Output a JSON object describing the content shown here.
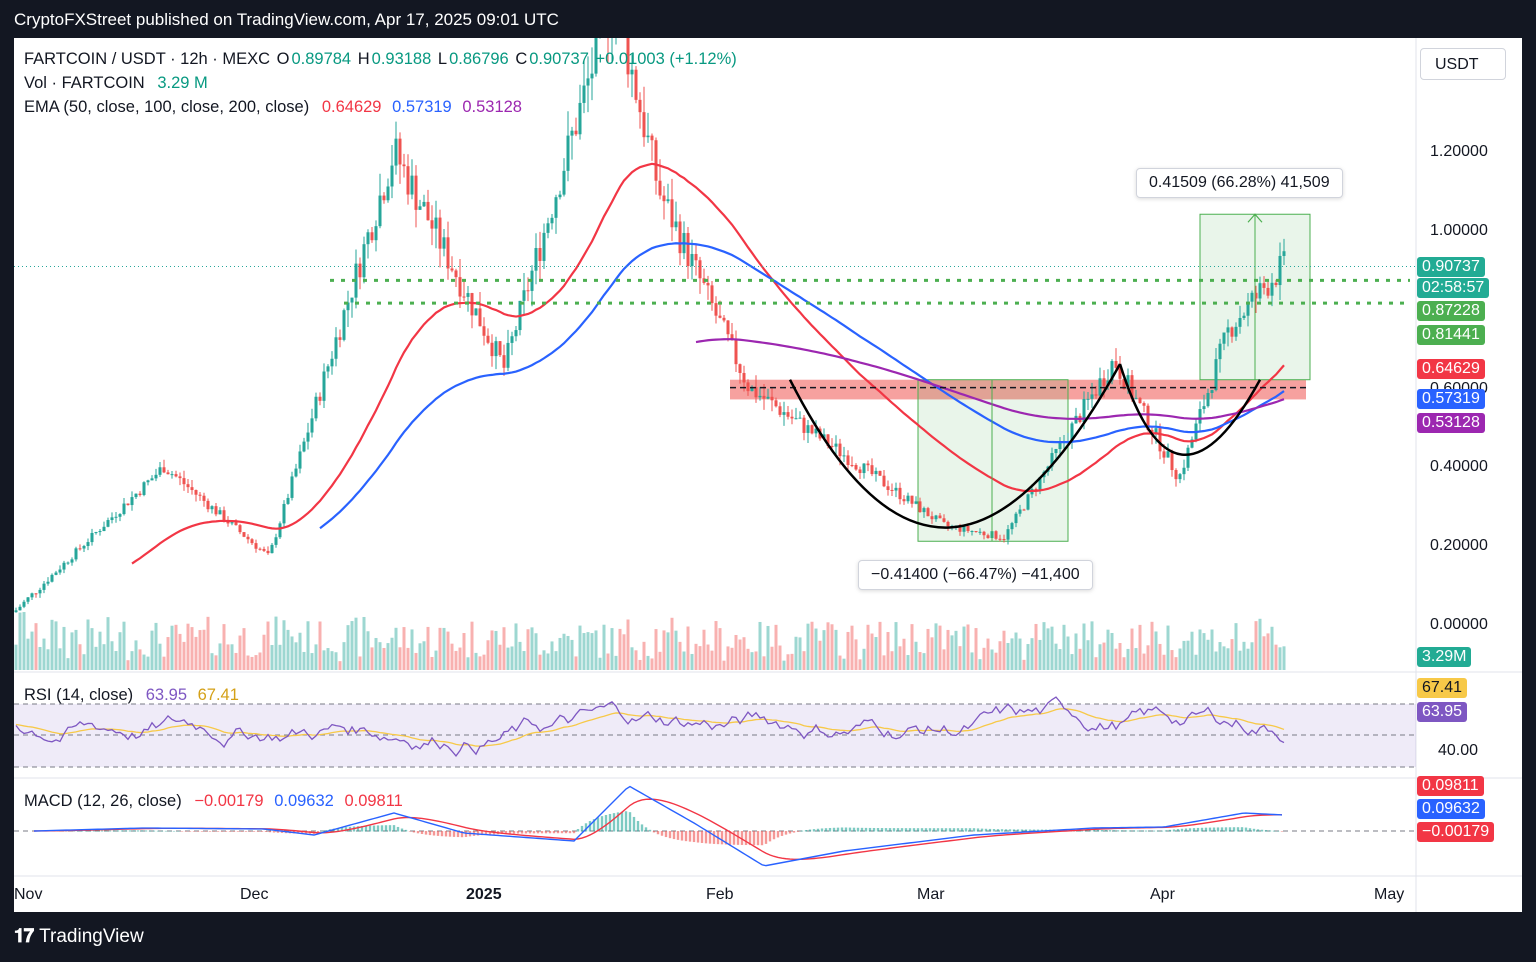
{
  "header": {
    "publisher_line": "CryptoFXStreet published on TradingView.com, Apr 17, 2025 09:01 UTC"
  },
  "footer": {
    "brand": "TradingView"
  },
  "legend": {
    "symbol": "FARTCOIN / USDT · 12h · MEXC",
    "o_label": "O",
    "o": "0.89784",
    "h_label": "H",
    "h": "0.93188",
    "l_label": "L",
    "l": "0.86796",
    "c_label": "C",
    "c": "0.90737",
    "change": "+0.01003 (+1.12%)",
    "vol_label": "Vol · FARTCOIN",
    "vol": "3.29 M",
    "ema_label": "EMA (50, close, 100, close, 200, close)",
    "ema50": "0.64629",
    "ema100": "0.57319",
    "ema200": "0.53128",
    "rsi_label": "RSI (14, close)",
    "rsi": "63.95",
    "rsi_ma": "67.41",
    "macd_label": "MACD (12, 26, close)",
    "macd_hist": "−0.00179",
    "macd": "0.09632",
    "macd_signal": "0.09811"
  },
  "price_axis": {
    "currency": "USDT",
    "ticks": [
      "1.20000",
      "1.00000",
      "0.60000",
      "0.40000",
      "0.20000",
      "0.00000"
    ],
    "rsi_ticks": [
      "40.00"
    ]
  },
  "price_labels": {
    "last": "0.90737",
    "countdown": "02:58:57",
    "level1": "0.87228",
    "level2": "0.81441",
    "ema50": "0.64629",
    "ema100": "0.57319",
    "ema200": "0.53128",
    "volume": "3.29M",
    "rsi_ma": "67.41",
    "rsi": "63.95",
    "macd_signal": "0.09811",
    "macd": "0.09632",
    "macd_hist": "−0.00179"
  },
  "time_axis": [
    "Nov",
    "Dec",
    "2025",
    "Feb",
    "Mar",
    "Apr",
    "May"
  ],
  "annotations": {
    "measure_up": "0.41509 (66.28%) 41,509",
    "measure_down": "−0.41400 (−66.47%) −41,400"
  },
  "colors": {
    "up": "#26a69a",
    "down": "#ef5350",
    "ema50": "#f23645",
    "ema100": "#2962ff",
    "ema200": "#9c27b0",
    "rsi": "#7e57c2",
    "rsi_ma": "#f7c948",
    "level": "#4caf50",
    "zone": "#ef5350"
  },
  "chart_data": [
    {
      "type": "candlestick",
      "title": "FARTCOIN / USDT · 12h · MEXC",
      "y_axis_ticks": [
        0.0,
        0.2,
        0.4,
        0.6,
        1.0,
        1.2
      ],
      "x_axis_ticks": [
        "Nov",
        "Dec",
        "2025",
        "Feb",
        "Mar",
        "Apr",
        "May"
      ],
      "key_points": [
        {
          "date": "Nov",
          "price": 0.03
        },
        {
          "date": "Nov 20",
          "price": 0.4
        },
        {
          "date": "Dec 5",
          "price": 0.17
        },
        {
          "date": "Dec 15",
          "price": 1.2
        },
        {
          "date": "Jan 1",
          "price": 0.65
        },
        {
          "date": "Jan 19",
          "price": 1.6
        },
        {
          "date": "Jan 25",
          "price": 1.1
        },
        {
          "date": "Feb 5",
          "price": 0.6
        },
        {
          "date": "Mar 1",
          "price": 0.25
        },
        {
          "date": "Mar 10",
          "price": 0.22
        },
        {
          "date": "Mar 25",
          "price": 0.67
        },
        {
          "date": "Apr 2",
          "price": 0.37
        },
        {
          "date": "Apr 10",
          "price": 0.75
        },
        {
          "date": "Apr 17",
          "price": 0.907
        }
      ],
      "ema": {
        "ema50": 0.64629,
        "ema100": 0.57319,
        "ema200": 0.53128
      },
      "horizontal_levels": [
        0.87228,
        0.81441,
        0.6
      ],
      "last_price": 0.90737
    },
    {
      "type": "line",
      "title": "RSI (14, close)",
      "y_axis_ticks": [
        40.0
      ],
      "series": [
        {
          "name": "RSI",
          "last": 63.95
        },
        {
          "name": "RSI MA",
          "last": 67.41
        }
      ]
    },
    {
      "type": "line",
      "title": "MACD (12, 26, close)",
      "series": [
        {
          "name": "MACD",
          "last": 0.09632
        },
        {
          "name": "Signal",
          "last": 0.09811
        },
        {
          "name": "Histogram",
          "last": -0.00179
        }
      ]
    }
  ]
}
